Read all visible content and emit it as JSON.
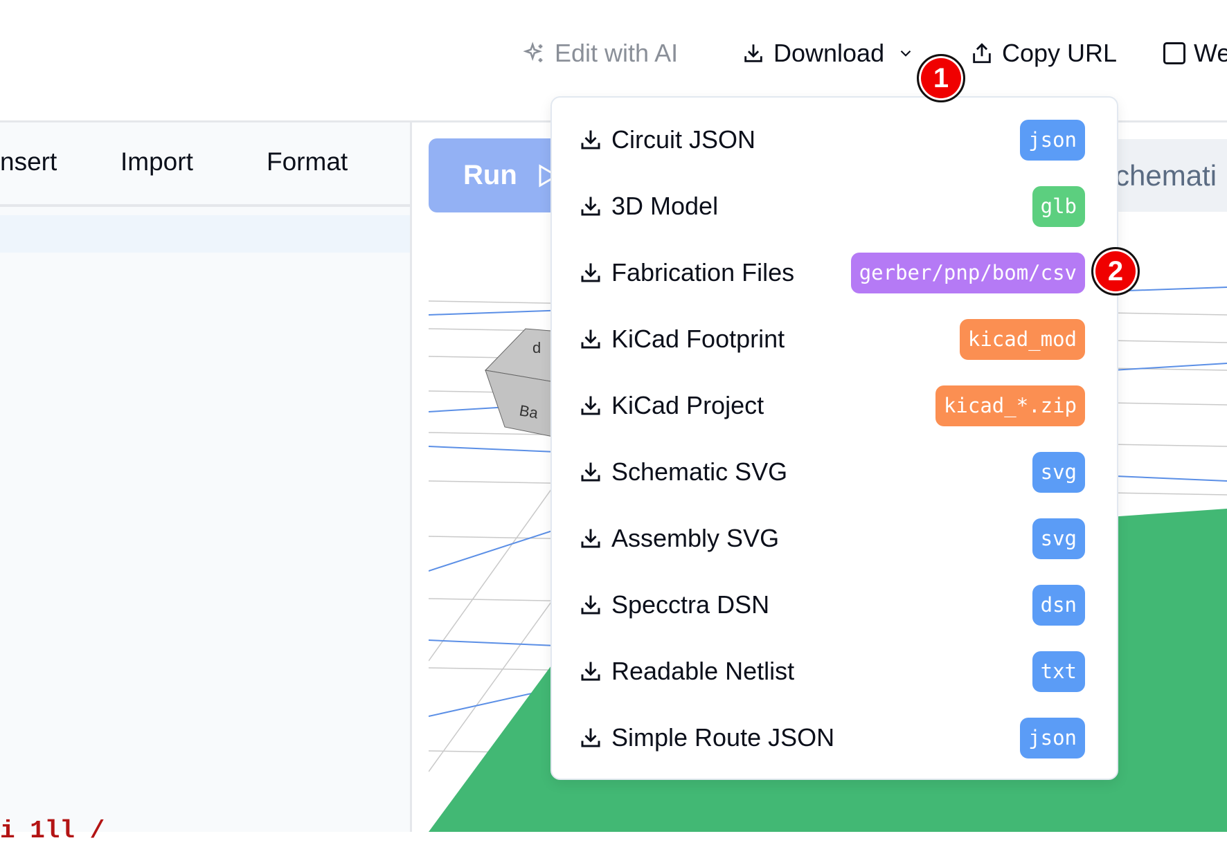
{
  "header": {
    "edit_ai": "Edit with AI",
    "download": "Download",
    "copy_url": "Copy URL",
    "checkbox_label": "We"
  },
  "editor": {
    "menus": [
      "nsert",
      "Import",
      "Format"
    ],
    "code_fragment": "i 1ll  /"
  },
  "preview": {
    "run_label": "Run",
    "schematic_tab": "chemati",
    "cube_labels": [
      "d",
      "Ba"
    ]
  },
  "dropdown": {
    "items": [
      {
        "label": "Circuit JSON",
        "badge": "json",
        "color": "#5b9cf6"
      },
      {
        "label": "3D Model",
        "badge": "glb",
        "color": "#5ccf7f"
      },
      {
        "label": "Fabrication Files",
        "badge": "gerber/pnp/bom/csv",
        "color": "#b57af5"
      },
      {
        "label": "KiCad Footprint",
        "badge": "kicad_mod",
        "color": "#fb8f52"
      },
      {
        "label": "KiCad Project",
        "badge": "kicad_*.zip",
        "color": "#fb8f52"
      },
      {
        "label": "Schematic SVG",
        "badge": "svg",
        "color": "#5b9cf6"
      },
      {
        "label": "Assembly SVG",
        "badge": "svg",
        "color": "#5b9cf6"
      },
      {
        "label": "Specctra DSN",
        "badge": "dsn",
        "color": "#5b9cf6"
      },
      {
        "label": "Readable Netlist",
        "badge": "txt",
        "color": "#5b9cf6"
      },
      {
        "label": "Simple Route JSON",
        "badge": "json",
        "color": "#5b9cf6"
      }
    ]
  },
  "markers": [
    "1",
    "2"
  ]
}
